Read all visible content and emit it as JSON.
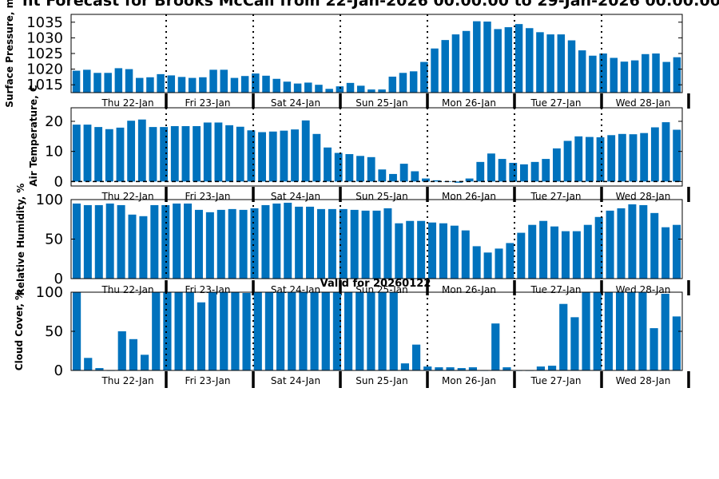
{
  "figure": {
    "title": "nt Forecast for Brooks McCall from 22-Jan-2026 00:00:00 to 29-Jan-2026 00:00:00",
    "subtitle": "Valid for 20260122"
  },
  "colors": {
    "bar": "#0072bd",
    "axis": "#000000",
    "background": "#ffffff"
  },
  "chart_data": [
    {
      "type": "bar",
      "title": "",
      "ylabel": "Surface Pressure, mb",
      "ylim": [
        1012.5,
        1037.5
      ],
      "yticks": [
        1015,
        1020,
        1025,
        1030,
        1035
      ],
      "day_labels": [
        "Thu 22-Jan",
        "Fri 23-Jan",
        "Sat 24-Jan",
        "Sun 25-Jan",
        "Mon 26-Jan",
        "Tue 27-Jan",
        "Wed 28-Jan"
      ],
      "values": [
        1019.5,
        1019.8,
        1018.8,
        1018.8,
        1020.3,
        1020.0,
        1017.2,
        1017.4,
        1018.4,
        1018.0,
        1017.5,
        1017.2,
        1017.4,
        1019.8,
        1019.8,
        1017.2,
        1017.8,
        1018.6,
        1017.9,
        1016.9,
        1016.0,
        1015.4,
        1015.7,
        1015.0,
        1013.7,
        1014.5,
        1015.6,
        1014.7,
        1013.5,
        1013.5,
        1017.6,
        1018.8,
        1019.3,
        1022.3,
        1026.6,
        1029.3,
        1031.1,
        1032.2,
        1035.3,
        1035.2,
        1032.8,
        1033.4,
        1034.4,
        1033.1,
        1031.8,
        1031.1,
        1031.1,
        1029.2,
        1026.0,
        1024.3,
        1025.0,
        1023.6,
        1022.4,
        1022.8,
        1024.8,
        1025.0,
        1022.3,
        1023.8
      ]
    },
    {
      "type": "bar",
      "title": "",
      "ylabel": "Air Temperature, C",
      "ylim": [
        -1.5,
        24.5
      ],
      "yticks": [
        0,
        10,
        20
      ],
      "day_labels": [
        "Thu 22-Jan",
        "Fri 23-Jan",
        "Sat 24-Jan",
        "Sun 25-Jan",
        "Mon 26-Jan",
        "Tue 27-Jan",
        "Wed 28-Jan"
      ],
      "values": [
        18.9,
        18.9,
        18.1,
        17.4,
        17.9,
        20.2,
        20.6,
        18.1,
        18.1,
        18.4,
        18.4,
        18.4,
        19.6,
        19.6,
        18.7,
        18.2,
        17.0,
        16.4,
        16.6,
        16.9,
        17.3,
        20.3,
        15.8,
        11.3,
        9.5,
        9.1,
        8.5,
        8.1,
        4.0,
        2.5,
        5.9,
        3.4,
        1.0,
        0.4,
        0.1,
        -0.4,
        1.0,
        6.5,
        9.3,
        7.5,
        6.2,
        5.7,
        6.5,
        7.5,
        11.0,
        13.5,
        15.0,
        14.8,
        14.7,
        15.4,
        15.8,
        15.7,
        16.1,
        18.0,
        19.7,
        17.2
      ]
    },
    {
      "type": "bar",
      "title": "",
      "ylabel": "Relative Humidity, %",
      "ylim": [
        0,
        100
      ],
      "yticks": [
        0,
        50,
        100
      ],
      "day_labels": [
        "Thu 22-Jan",
        "Fri 23-Jan",
        "Sat 24-Jan",
        "Sun 25-Jan",
        "Mon 26-Jan",
        "Tue 27-Jan",
        "Wed 28-Jan"
      ],
      "values": [
        95,
        93,
        93,
        95,
        93,
        81,
        79,
        93,
        93,
        95,
        95,
        87,
        84,
        87,
        88,
        87,
        89,
        93,
        95,
        96,
        91,
        91,
        88,
        88,
        88,
        87,
        86,
        86,
        89,
        70,
        73,
        73,
        71,
        70,
        67,
        61,
        41,
        33,
        38,
        45,
        58,
        68,
        73,
        66,
        60,
        60,
        68,
        78,
        86,
        89,
        94,
        93,
        83,
        65,
        68
      ]
    },
    {
      "type": "bar",
      "title": "Valid for 20260122",
      "ylabel": "Cloud Cover, %",
      "ylim": [
        0,
        100
      ],
      "yticks": [
        0,
        50,
        100
      ],
      "day_labels": [
        "Thu 22-Jan",
        "Fri 23-Jan",
        "Sat 24-Jan",
        "Sun 25-Jan",
        "Mon 26-Jan",
        "Tue 27-Jan",
        "Wed 28-Jan"
      ],
      "values": [
        100,
        16,
        3,
        0,
        50,
        40,
        20,
        100,
        100,
        100,
        100,
        87,
        100,
        100,
        100,
        99,
        100,
        100,
        100,
        100,
        100,
        100,
        100,
        100,
        100,
        100,
        100,
        100,
        100,
        9,
        33,
        5,
        4,
        4,
        3,
        4,
        0,
        60,
        4,
        0,
        0,
        5,
        6,
        85,
        68,
        100,
        100,
        100,
        100,
        100,
        100,
        54,
        98,
        69
      ]
    }
  ]
}
